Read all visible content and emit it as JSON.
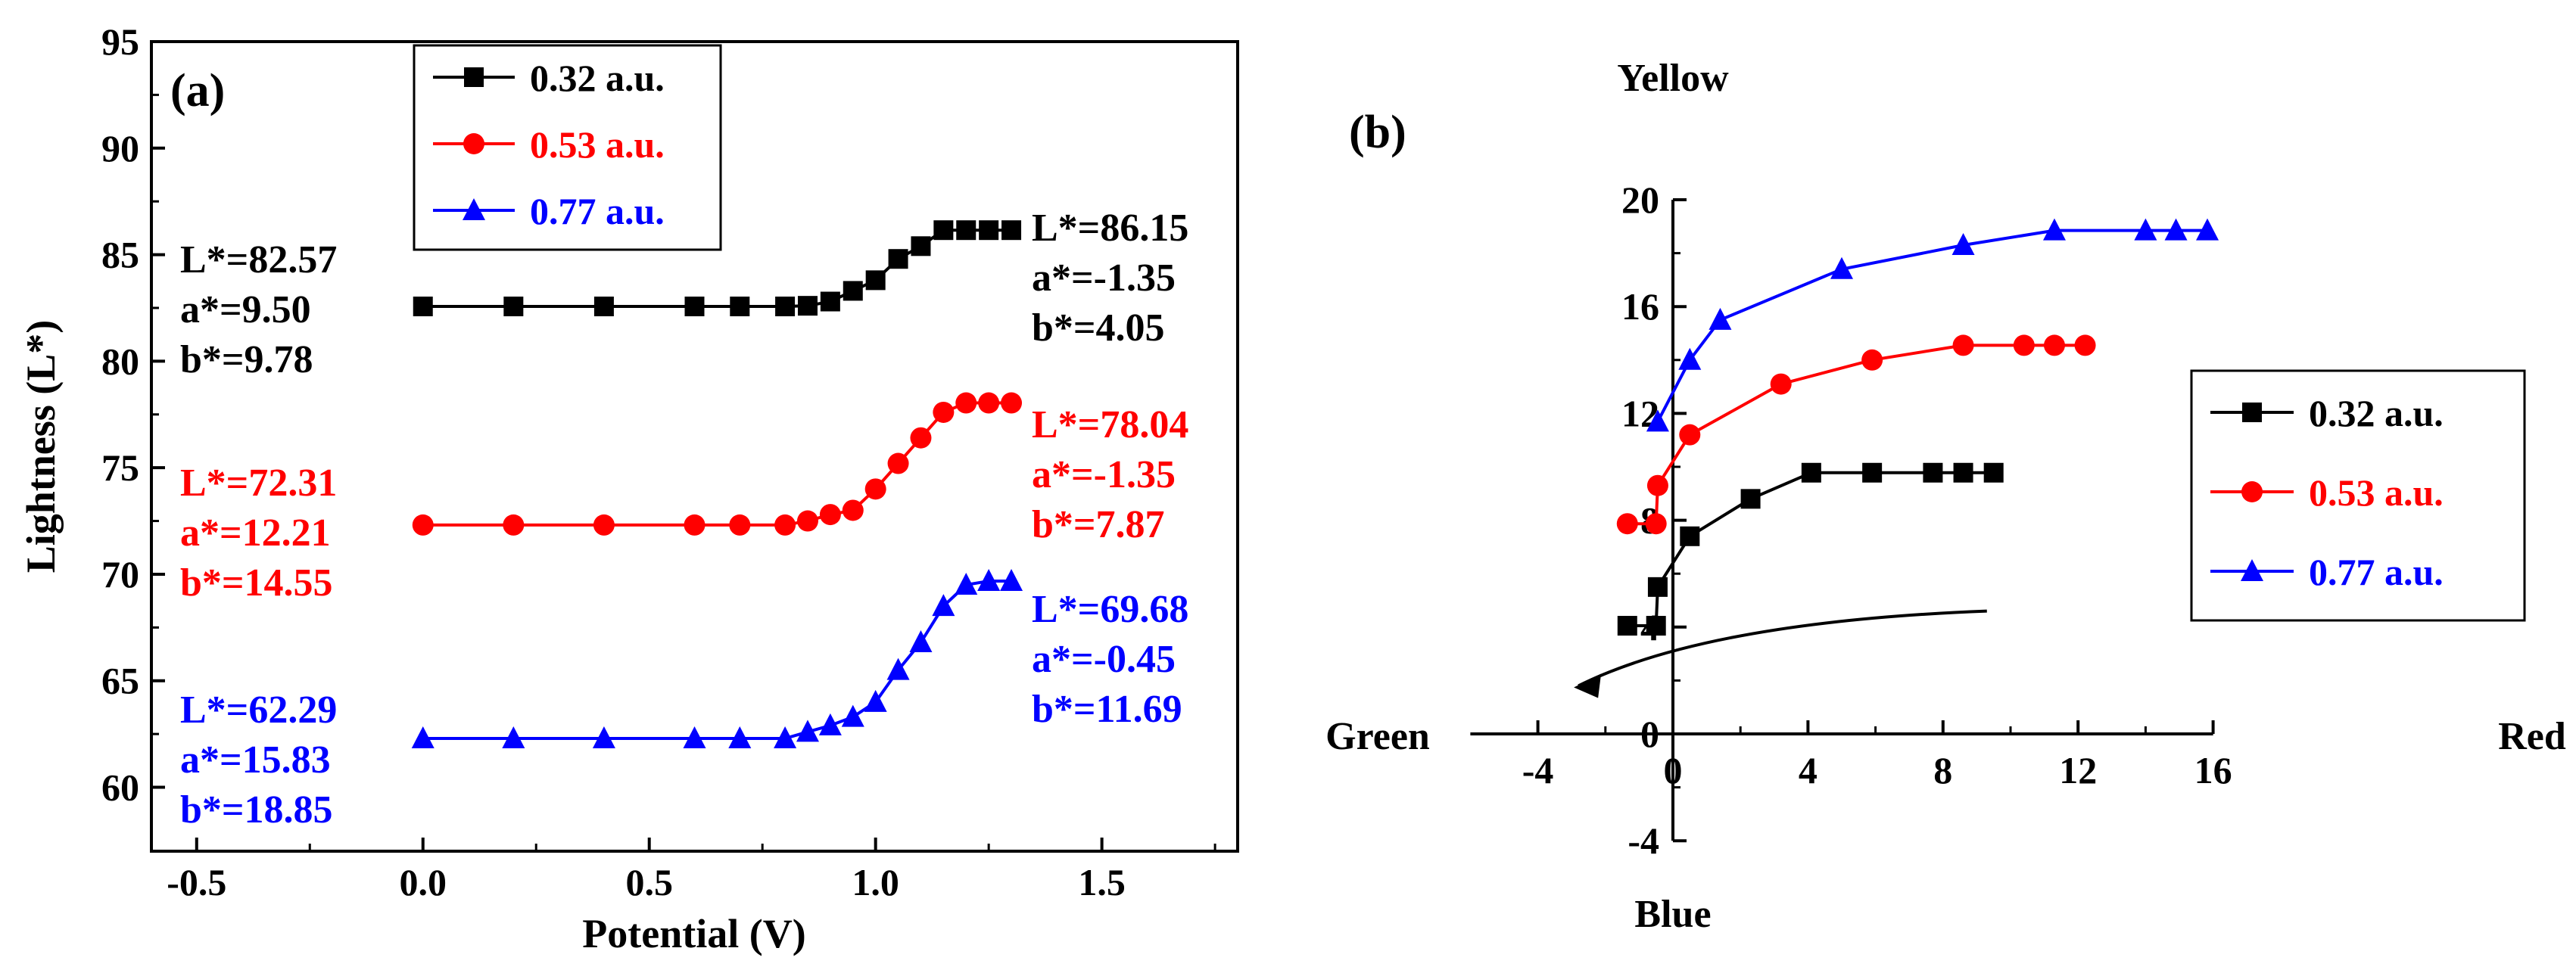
{
  "colors": {
    "black": "#000000",
    "red": "#ff0000",
    "blue": "#0000ff"
  },
  "chart_data": [
    {
      "panel_label": "(a)",
      "type": "line",
      "xlabel": "Potential (V)",
      "ylabel": "Lightness (L*)",
      "xlim": [
        -0.6,
        1.8
      ],
      "ylim": [
        57,
        95
      ],
      "xticks": [
        "-0.5",
        "0.0",
        "0.5",
        "1.0",
        "1.5"
      ],
      "xtick_values": [
        -0.5,
        0.0,
        0.5,
        1.0,
        1.5
      ],
      "yticks": [
        "60",
        "65",
        "70",
        "75",
        "80",
        "85",
        "90",
        "95"
      ],
      "ytick_values": [
        60,
        65,
        70,
        75,
        80,
        85,
        90,
        95
      ],
      "legend_position": "top-center",
      "series": [
        {
          "name": "0.32 a.u.",
          "color": "#000000",
          "marker": "square",
          "x": [
            0.0,
            0.2,
            0.4,
            0.6,
            0.7,
            0.8,
            0.85,
            0.9,
            0.95,
            1.0,
            1.05,
            1.1,
            1.15,
            1.2,
            1.25,
            1.3
          ],
          "y": [
            82.57,
            82.57,
            82.57,
            82.57,
            82.57,
            82.57,
            82.6,
            82.8,
            83.3,
            83.8,
            84.8,
            85.4,
            86.15,
            86.15,
            86.15,
            86.15
          ]
        },
        {
          "name": "0.53 a.u.",
          "color": "#ff0000",
          "marker": "circle",
          "x": [
            0.0,
            0.2,
            0.4,
            0.6,
            0.7,
            0.8,
            0.85,
            0.9,
            0.95,
            1.0,
            1.05,
            1.1,
            1.15,
            1.2,
            1.25,
            1.3
          ],
          "y": [
            72.31,
            72.31,
            72.31,
            72.31,
            72.31,
            72.31,
            72.5,
            72.8,
            73.0,
            74.0,
            75.2,
            76.4,
            77.6,
            78.04,
            78.04,
            78.04
          ]
        },
        {
          "name": "0.77 a.u.",
          "color": "#0000ff",
          "marker": "triangle",
          "x": [
            0.0,
            0.2,
            0.4,
            0.6,
            0.7,
            0.8,
            0.85,
            0.9,
            0.95,
            1.0,
            1.05,
            1.1,
            1.15,
            1.2,
            1.25,
            1.3
          ],
          "y": [
            62.29,
            62.29,
            62.29,
            62.29,
            62.29,
            62.29,
            62.6,
            62.9,
            63.3,
            64.0,
            65.5,
            66.8,
            68.5,
            69.5,
            69.68,
            69.68
          ]
        }
      ],
      "annotations": [
        {
          "color": "#000000",
          "lines": [
            "L*=82.57",
            "a*=9.50",
            "b*=9.78"
          ],
          "side": "left"
        },
        {
          "color": "#000000",
          "lines": [
            "L*=86.15",
            "a*=-1.35",
            "b*=4.05"
          ],
          "side": "right"
        },
        {
          "color": "#ff0000",
          "lines": [
            "L*=72.31",
            "a*=12.21",
            "b*=14.55"
          ],
          "side": "left"
        },
        {
          "color": "#ff0000",
          "lines": [
            "L*=78.04",
            "a*=-1.35",
            "b*=7.87"
          ],
          "side": "right"
        },
        {
          "color": "#0000ff",
          "lines": [
            "L*=62.29",
            "a*=15.83",
            "b*=18.85"
          ],
          "side": "left"
        },
        {
          "color": "#0000ff",
          "lines": [
            "L*=69.68",
            "a*=-0.45",
            "b*=11.69"
          ],
          "side": "right"
        }
      ]
    },
    {
      "panel_label": "(b)",
      "type": "line",
      "axis_labels": {
        "top": "Yellow",
        "bottom": "Blue",
        "left": "Green",
        "right": "Red"
      },
      "xlim": [
        -6,
        16
      ],
      "ylim": [
        -4,
        20
      ],
      "xticks": [
        "-4",
        "0",
        "4",
        "8",
        "12",
        "16"
      ],
      "xtick_values": [
        -4,
        0,
        4,
        8,
        12,
        16
      ],
      "yticks": [
        "-4",
        "0",
        "4",
        "8",
        "12",
        "16",
        "20"
      ],
      "ytick_values": [
        -4,
        0,
        4,
        8,
        12,
        16,
        20
      ],
      "legend_position": "right",
      "series": [
        {
          "name": "0.32 a.u.",
          "color": "#000000",
          "marker": "square",
          "x": [
            -1.35,
            -0.5,
            -0.45,
            0.5,
            2.3,
            4.1,
            5.9,
            7.7,
            8.6,
            9.5
          ],
          "y": [
            4.05,
            4.05,
            5.5,
            7.4,
            8.8,
            9.78,
            9.78,
            9.78,
            9.78,
            9.78
          ]
        },
        {
          "name": "0.53 a.u.",
          "color": "#ff0000",
          "marker": "circle",
          "x": [
            -1.35,
            -0.5,
            -0.45,
            0.5,
            3.2,
            5.9,
            8.6,
            10.4,
            11.3,
            12.21
          ],
          "y": [
            7.87,
            7.87,
            9.3,
            11.2,
            13.1,
            14.0,
            14.55,
            14.55,
            14.55,
            14.55
          ]
        },
        {
          "name": "0.77 a.u.",
          "color": "#0000ff",
          "marker": "triangle",
          "x": [
            -0.45,
            0.5,
            1.4,
            5.0,
            8.6,
            11.3,
            14.0,
            14.9,
            15.83
          ],
          "y": [
            11.69,
            14.0,
            15.5,
            17.4,
            18.3,
            18.85,
            18.85,
            18.85,
            18.85
          ]
        }
      ],
      "arrow": {
        "from": [
          9.3,
          4.6
        ],
        "to": [
          -2.8,
          1.8
        ]
      }
    }
  ]
}
